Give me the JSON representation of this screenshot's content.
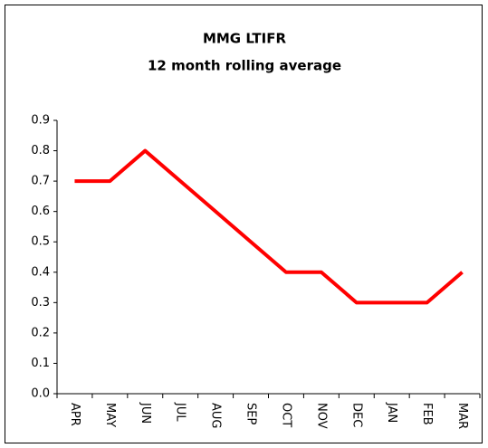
{
  "chart_data": {
    "type": "line",
    "title": "MMG LTIFR",
    "subtitle": "12 month rolling average",
    "categories": [
      "APR",
      "MAY",
      "JUN",
      "JUL",
      "AUG",
      "SEP",
      "OCT",
      "NOV",
      "DEC",
      "JAN",
      "FEB",
      "MAR"
    ],
    "values": [
      0.7,
      0.7,
      0.8,
      0.7,
      0.6,
      0.5,
      0.4,
      0.4,
      0.3,
      0.3,
      0.3,
      0.4
    ],
    "color": "#ff0000",
    "ylim": [
      0,
      0.9
    ],
    "yticks": [
      {
        "value": 0,
        "label": "0.0"
      },
      0.1,
      0.2,
      0.3,
      0.4,
      0.5,
      0.6,
      0.7,
      0.8,
      0.9
    ]
  }
}
